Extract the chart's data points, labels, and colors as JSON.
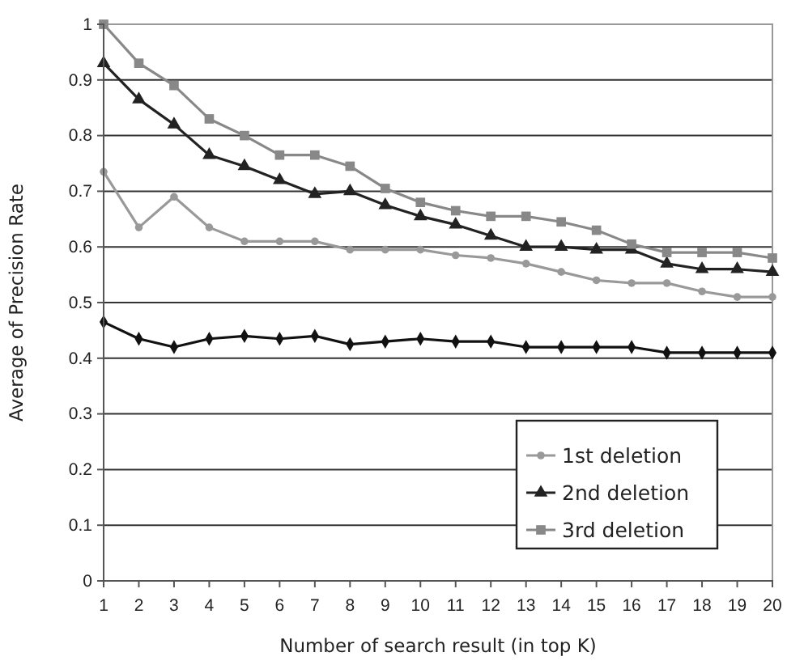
{
  "chart_data": {
    "type": "line",
    "xlabel": "Number of search result (in top K)",
    "ylabel": "Average of Precision Rate",
    "x": [
      1,
      2,
      3,
      4,
      5,
      6,
      7,
      8,
      9,
      10,
      11,
      12,
      13,
      14,
      15,
      16,
      17,
      18,
      19,
      20
    ],
    "xlim": [
      1,
      20
    ],
    "xticks": [
      1,
      2,
      3,
      4,
      5,
      6,
      7,
      8,
      9,
      10,
      11,
      12,
      13,
      14,
      15,
      16,
      17,
      18,
      19,
      20
    ],
    "ylim": [
      0,
      1
    ],
    "yticks": [
      0,
      0.1,
      0.2,
      0.3,
      0.4,
      0.5,
      0.6,
      0.7,
      0.8,
      0.9,
      1
    ],
    "grid": "y",
    "legend": "bottom right",
    "line_style": "solid",
    "series": [
      {
        "color": "#111111",
        "marker": "diamond",
        "values": [
          0.465,
          0.435,
          0.42,
          0.435,
          0.44,
          0.435,
          0.44,
          0.425,
          0.43,
          0.435,
          0.43,
          0.43,
          0.42,
          0.42,
          0.42,
          0.42,
          0.41,
          0.41,
          0.41,
          0.41
        ]
      },
      {
        "name": "1st deletion",
        "color": "#999999",
        "marker": "circle",
        "values": [
          0.735,
          0.635,
          0.69,
          0.635,
          0.61,
          0.61,
          0.61,
          0.595,
          0.595,
          0.595,
          0.585,
          0.58,
          0.57,
          0.555,
          0.54,
          0.535,
          0.535,
          0.52,
          0.51,
          0.51
        ]
      },
      {
        "name": "2nd deletion",
        "color": "#222222",
        "marker": "triangle",
        "values": [
          0.93,
          0.865,
          0.82,
          0.765,
          0.745,
          0.72,
          0.695,
          0.7,
          0.675,
          0.655,
          0.64,
          0.62,
          0.6,
          0.6,
          0.595,
          0.595,
          0.57,
          0.56,
          0.56,
          0.555
        ]
      },
      {
        "name": "3rd deletion",
        "color": "#888888",
        "marker": "square",
        "values": [
          1,
          0.93,
          0.89,
          0.83,
          0.8,
          0.765,
          0.765,
          0.745,
          0.705,
          0.68,
          0.665,
          0.655,
          0.655,
          0.645,
          0.63,
          0.605,
          0.59,
          0.59,
          0.59,
          0.58
        ]
      }
    ]
  }
}
